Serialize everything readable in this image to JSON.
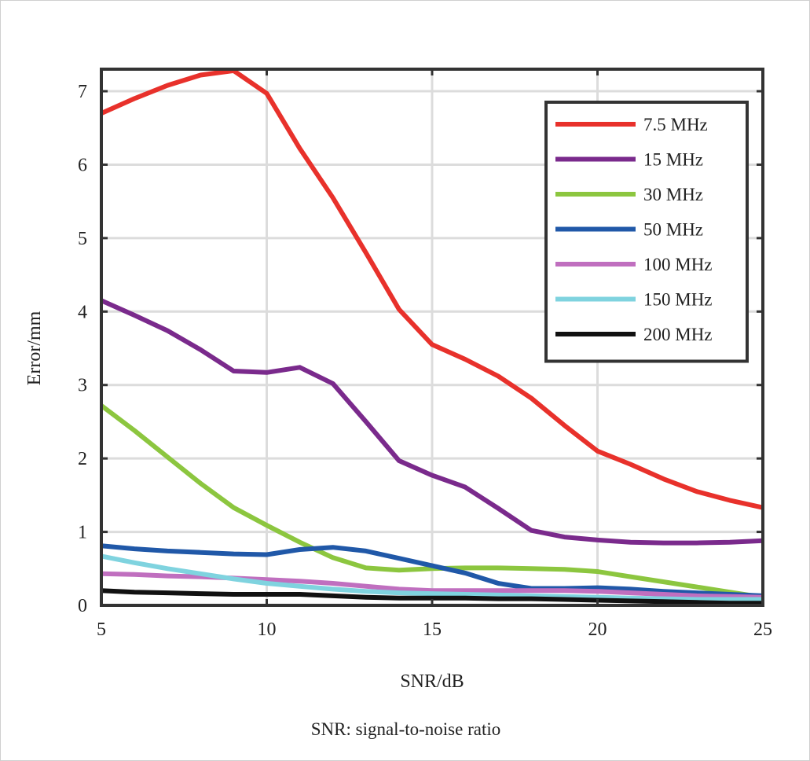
{
  "caption": "SNR: signal-to-noise ratio",
  "chart_data": {
    "type": "line",
    "title": "",
    "xlabel": "SNR/dB",
    "ylabel": "Error/mm",
    "xlim": [
      5,
      25
    ],
    "ylim": [
      0,
      7.3
    ],
    "xticks": [
      5,
      10,
      15,
      20,
      25
    ],
    "yticks": [
      0,
      1,
      2,
      3,
      4,
      5,
      6,
      7
    ],
    "grid": true,
    "legend_position": "top-right",
    "x": [
      5,
      6,
      7,
      8,
      9,
      10,
      11,
      12,
      13,
      14,
      15,
      16,
      17,
      18,
      19,
      20,
      21,
      22,
      23,
      24,
      25
    ],
    "series": [
      {
        "name": "7.5 MHz",
        "color": "#e8312b",
        "values": [
          6.7,
          6.9,
          7.08,
          7.22,
          7.28,
          6.97,
          6.22,
          5.55,
          4.8,
          4.03,
          3.55,
          3.35,
          3.12,
          2.82,
          2.45,
          2.1,
          1.92,
          1.72,
          1.55,
          1.43,
          1.33
        ]
      },
      {
        "name": "15 MHz",
        "color": "#7a2a8c",
        "values": [
          4.15,
          3.95,
          3.74,
          3.48,
          3.19,
          3.17,
          3.24,
          3.02,
          2.5,
          1.97,
          1.77,
          1.61,
          1.32,
          1.02,
          0.93,
          0.89,
          0.86,
          0.85,
          0.85,
          0.86,
          0.88
        ]
      },
      {
        "name": "30 MHz",
        "color": "#8cc63f",
        "values": [
          2.72,
          2.38,
          2.02,
          1.66,
          1.33,
          1.09,
          0.86,
          0.65,
          0.51,
          0.48,
          0.5,
          0.51,
          0.51,
          0.5,
          0.49,
          0.46,
          0.39,
          0.32,
          0.25,
          0.18,
          0.11
        ]
      },
      {
        "name": "50 MHz",
        "color": "#2058a8",
        "values": [
          0.81,
          0.77,
          0.74,
          0.72,
          0.7,
          0.69,
          0.76,
          0.79,
          0.74,
          0.64,
          0.54,
          0.44,
          0.3,
          0.23,
          0.23,
          0.24,
          0.22,
          0.19,
          0.17,
          0.15,
          0.13
        ]
      },
      {
        "name": "100 MHz",
        "color": "#c06fbf",
        "values": [
          0.43,
          0.42,
          0.4,
          0.39,
          0.37,
          0.35,
          0.33,
          0.3,
          0.26,
          0.22,
          0.2,
          0.2,
          0.2,
          0.2,
          0.2,
          0.19,
          0.17,
          0.15,
          0.13,
          0.12,
          0.11
        ]
      },
      {
        "name": "150 MHz",
        "color": "#7fd3df",
        "values": [
          0.67,
          0.58,
          0.5,
          0.43,
          0.36,
          0.3,
          0.26,
          0.22,
          0.19,
          0.17,
          0.16,
          0.15,
          0.14,
          0.13,
          0.12,
          0.11,
          0.1,
          0.09,
          0.08,
          0.08,
          0.08
        ]
      },
      {
        "name": "200 MHz",
        "color": "#111111",
        "values": [
          0.2,
          0.18,
          0.17,
          0.16,
          0.15,
          0.15,
          0.15,
          0.13,
          0.11,
          0.1,
          0.1,
          0.1,
          0.09,
          0.09,
          0.08,
          0.07,
          0.06,
          0.05,
          0.04,
          0.03,
          0.03
        ]
      }
    ]
  }
}
